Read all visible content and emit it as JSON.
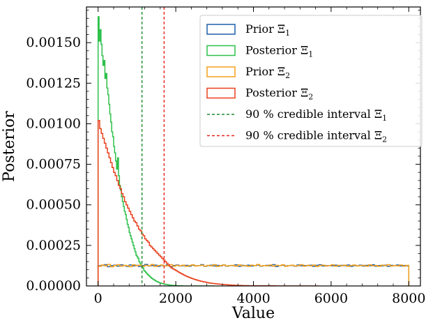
{
  "chart_data": {
    "type": "histogram",
    "xlabel": "Value",
    "ylabel": "Posterior",
    "xlim": [
      -300,
      8300
    ],
    "ylim": [
      0,
      0.00172
    ],
    "x_ticks": [
      0,
      2000,
      4000,
      6000,
      8000
    ],
    "x_tick_labels": [
      "0",
      "2000",
      "4000",
      "6000",
      "8000"
    ],
    "y_ticks": [
      0,
      0.00025,
      0.0005,
      0.00075,
      0.001,
      0.00125,
      0.0015
    ],
    "y_tick_labels": [
      "0.00000",
      "0.00025",
      "0.00050",
      "0.00075",
      "0.00100",
      "0.00125",
      "0.00150"
    ],
    "grid": false,
    "legend_position": "top-right",
    "bin_range": [
      0,
      8000
    ],
    "series": [
      {
        "name": "Prior Ξ1",
        "kind": "step",
        "color": "#1f5fa8",
        "legend_label": "Prior Ξ",
        "legend_sub": "1",
        "bin_width": 80,
        "values": [
          0.000124,
          0.000127,
          0.000131,
          0.000119,
          0.000125,
          0.000128,
          0.000122,
          0.00013,
          0.000126,
          0.000121,
          0.000129,
          0.000124,
          0.000127,
          0.00012,
          0.000126,
          0.000132,
          0.000123,
          0.000125,
          0.000128,
          0.000121,
          0.000127,
          0.000124,
          0.00013,
          0.000118,
          0.000126,
          0.000129,
          0.000123,
          0.000125,
          0.000127,
          0.000122,
          0.000128,
          0.000124,
          0.000126,
          0.000131,
          0.000121,
          0.000125,
          0.000128,
          0.000123,
          0.000127,
          0.000124,
          0.000129,
          0.000122,
          0.000126,
          0.000125,
          0.00013,
          0.000121,
          0.000127,
          0.000124,
          0.000128,
          0.000123,
          0.000126,
          0.000129,
          0.000122,
          0.000125,
          0.000127,
          0.000124,
          0.000131,
          0.00012,
          0.000126,
          0.000128,
          0.000123,
          0.000125,
          0.000127,
          0.000122,
          0.000129,
          0.000124,
          0.000126,
          0.000125,
          0.000128,
          0.000121,
          0.000127,
          0.00013,
          0.000123,
          0.000125,
          0.000126,
          0.000124,
          0.000128,
          0.000122,
          0.000127,
          0.000125,
          0.000129,
          0.000121,
          0.000126,
          0.000124,
          0.000128,
          0.000123,
          0.000127,
          0.000125,
          0.00013,
          0.000122,
          0.000126,
          0.000124,
          0.000128,
          0.000121,
          0.000127,
          0.000125,
          0.000129,
          0.000123,
          0.000126,
          0.000124
        ]
      },
      {
        "name": "Posterior Ξ1",
        "kind": "step",
        "color": "#2ec04a",
        "legend_label": "Posterior Ξ",
        "legend_sub": "1",
        "bin_width": 25,
        "values": [
          0.00166,
          0.00151,
          0.00158,
          0.00149,
          0.00142,
          0.00136,
          0.00139,
          0.00128,
          0.00131,
          0.00122,
          0.00118,
          0.00112,
          0.00106,
          0.00101,
          0.00095,
          0.00092,
          0.00086,
          0.00082,
          0.00077,
          0.00072,
          0.00079,
          0.00068,
          0.00062,
          0.00059,
          0.00055,
          0.00052,
          0.00049,
          0.00046,
          0.00044,
          0.00041,
          0.00038,
          0.00036,
          0.00033,
          0.00031,
          0.00029,
          0.00027,
          0.00025,
          0.00023,
          0.00021,
          0.00019,
          0.00018,
          0.00017,
          0.00015,
          0.00014,
          0.00013,
          0.00012,
          0.00011,
          9.5e-05,
          9e-05,
          8.2e-05,
          7.5e-05,
          7e-05,
          6.4e-05,
          5.8e-05,
          5.2e-05,
          4.7e-05,
          4.3e-05,
          3.9e-05,
          3.5e-05,
          3.1e-05,
          2.8e-05,
          2.5e-05,
          2.2e-05,
          2e-05,
          1.8e-05,
          1.6e-05,
          1.4e-05,
          1.3e-05,
          1.1e-05,
          1e-05,
          9e-06,
          8e-06,
          7e-06,
          6e-06,
          5e-06,
          4e-06,
          4e-06,
          3e-06,
          3e-06,
          2e-06,
          2e-06,
          2e-06,
          1e-06,
          1e-06,
          1e-06,
          1e-06,
          1e-06,
          0,
          0,
          0,
          0,
          0,
          0,
          0,
          0,
          0,
          0,
          0,
          0,
          0,
          0,
          0,
          0,
          0,
          0,
          0,
          0,
          0,
          0,
          0,
          0,
          0,
          0,
          0,
          0,
          0,
          0,
          0,
          0,
          0
        ]
      },
      {
        "name": "Prior Ξ2",
        "kind": "step",
        "color": "#f5a01a",
        "legend_label": "Prior Ξ",
        "legend_sub": "2",
        "bin_width": 80,
        "values": [
          0.000121,
          0.000129,
          0.000124,
          0.000133,
          0.000118,
          0.000126,
          0.000131,
          0.000122,
          0.000127,
          0.000124,
          0.000119,
          0.00013,
          0.000125,
          0.000128,
          0.000121,
          0.000127,
          0.000124,
          0.000132,
          0.00012,
          0.000126,
          0.000129,
          0.000123,
          0.000125,
          0.000131,
          0.000122,
          0.000127,
          0.000124,
          0.000128,
          0.000121,
          0.000126,
          0.00013,
          0.000123,
          0.000125,
          0.000128,
          0.000122,
          0.000127,
          0.000124,
          0.000131,
          0.00012,
          0.000126,
          0.000129,
          0.000123,
          0.000125,
          0.000127,
          0.000122,
          0.00013,
          0.000124,
          0.000126,
          0.000121,
          0.000128,
          0.000125,
          0.000132,
          0.000123,
          0.000126,
          0.000124,
          0.000129,
          0.000122,
          0.000127,
          0.000125,
          0.00013,
          0.000121,
          0.000126,
          0.000128,
          0.000123,
          0.000125,
          0.000131,
          0.000122,
          0.000127,
          0.000124,
          0.000129,
          0.00012,
          0.000126,
          0.000128,
          0.000123,
          0.000125,
          0.00013,
          0.000122,
          0.000127,
          0.000124,
          0.000128,
          0.000121,
          0.000126,
          0.000129,
          0.000123,
          0.000125,
          0.000127,
          0.000122,
          0.00013,
          0.000124,
          0.000126,
          0.000121,
          0.000128,
          0.000125,
          0.000131,
          0.000123,
          0.000126,
          0.000124,
          0.000129,
          0.000122,
          0.000127
        ]
      },
      {
        "name": "Posterior Ξ2",
        "kind": "step",
        "color": "#e8401c",
        "legend_label": "Posterior Ξ",
        "legend_sub": "2",
        "bin_width": 40,
        "values": [
          0.00102,
          0.00097,
          0.00094,
          0.00091,
          0.00088,
          0.00085,
          0.00082,
          0.00079,
          0.00076,
          0.00073,
          0.0007,
          0.00068,
          0.00065,
          0.00062,
          0.0006,
          0.00057,
          0.00055,
          0.00052,
          0.0005,
          0.00048,
          0.00046,
          0.00044,
          0.00042,
          0.0004,
          0.00039,
          0.00037,
          0.00035,
          0.00034,
          0.00032,
          0.00031,
          0.00029,
          0.00028,
          0.00027,
          0.00025,
          0.00024,
          0.00023,
          0.00022,
          0.00021,
          0.0002,
          0.00019,
          0.00018,
          0.00017,
          0.00016,
          0.00015,
          0.00014,
          0.00013,
          0.00012,
          0.00011,
          0.000105,
          0.0001,
          9.4e-05,
          8.8e-05,
          8.2e-05,
          7.7e-05,
          7.2e-05,
          6.7e-05,
          6.2e-05,
          5.8e-05,
          5.4e-05,
          5e-05,
          4.6e-05,
          4.3e-05,
          4e-05,
          3.7e-05,
          3.4e-05,
          3.1e-05,
          2.9e-05,
          2.7e-05,
          2.5e-05,
          2.3e-05,
          2.1e-05,
          1.9e-05,
          1.8e-05,
          1.6e-05,
          1.5e-05,
          1.4e-05,
          1.3e-05,
          1.2e-05,
          1.1e-05,
          1e-05,
          9e-06,
          8e-06,
          8e-06,
          7e-06,
          6e-06,
          6e-06,
          5e-06,
          5e-06,
          4e-06,
          4e-06,
          3e-06,
          3e-06,
          3e-06,
          2e-06,
          2e-06,
          2e-06,
          2e-06,
          1e-06,
          1e-06,
          1e-06,
          1e-06,
          1e-06,
          1e-06,
          1e-06,
          1e-06,
          1e-06,
          1e-06,
          1e-06,
          1e-06,
          1e-06,
          1e-06,
          1e-06,
          1e-06,
          1e-06,
          0,
          0,
          0,
          0,
          0,
          0,
          0,
          0,
          0,
          0,
          0,
          0,
          0,
          0,
          0,
          0,
          0,
          0,
          0,
          0,
          0,
          0,
          0,
          0,
          0,
          0,
          0,
          0
        ]
      },
      {
        "name": "90 % credible interval Ξ1",
        "kind": "vline",
        "color": "#1c8a2e",
        "legend_label": "90 % credible interval Ξ",
        "legend_sub": "1",
        "x": 1130
      },
      {
        "name": "90 % credible interval Ξ2",
        "kind": "vline",
        "color": "#e8221c",
        "legend_label": "90 % credible interval Ξ",
        "legend_sub": "2",
        "x": 1700
      }
    ]
  }
}
